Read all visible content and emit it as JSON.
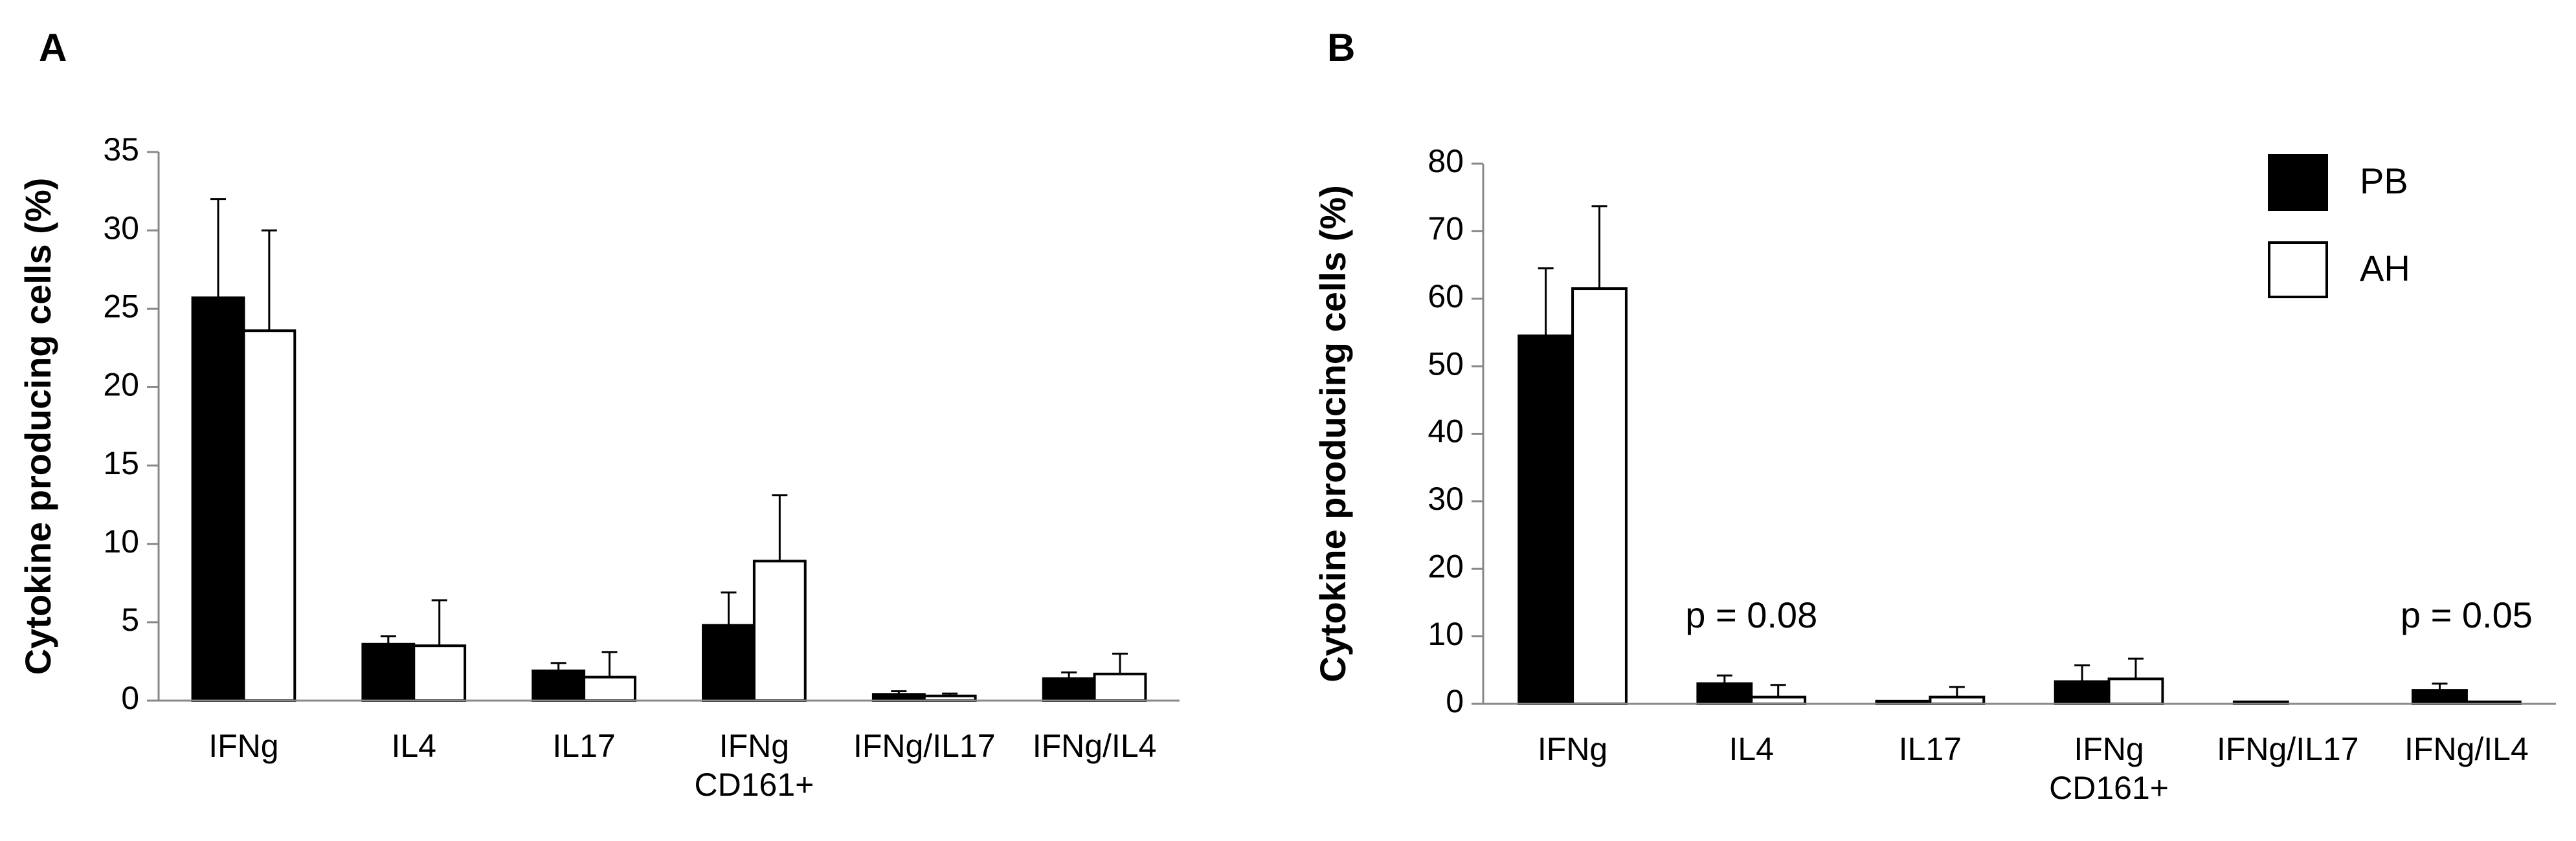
{
  "chart_data": [
    {
      "type": "bar",
      "label": "A",
      "y_label": "Cytokine producing cells (%)",
      "categories": [
        "IFNg",
        "IL4",
        "IL17",
        "IFNg CD161+",
        "IFNg/IL17",
        "IFNg/IL4"
      ],
      "series": [
        {
          "name": "PB",
          "color": "#000000",
          "values": [
            25.7,
            3.6,
            1.9,
            4.8,
            0.4,
            1.4
          ],
          "errors": [
            6.3,
            0.5,
            0.5,
            2.1,
            0.2,
            0.4
          ]
        },
        {
          "name": "AH",
          "color": "#ffffff",
          "values": [
            23.6,
            3.5,
            1.5,
            8.9,
            0.3,
            1.7
          ],
          "errors": [
            6.4,
            2.9,
            1.6,
            4.2,
            0.15,
            1.3
          ]
        }
      ],
      "ylim": [
        0,
        35
      ],
      "yticks": [
        0,
        5,
        10,
        15,
        20,
        25,
        30,
        35
      ],
      "legend": false
    },
    {
      "type": "bar",
      "label": "B",
      "y_label": "Cytokine producing cells (%)",
      "categories": [
        "IFNg",
        "IL4",
        "IL17",
        "IFNg CD161+",
        "IFNg/IL17",
        "IFNg/IL4"
      ],
      "series": [
        {
          "name": "PB",
          "color": "#000000",
          "values": [
            54.5,
            3.0,
            0.4,
            3.3,
            0.3,
            2.0
          ],
          "errors": [
            10.0,
            1.2,
            0,
            2.4,
            0,
            1.0
          ]
        },
        {
          "name": "AH",
          "color": "#ffffff",
          "values": [
            61.5,
            1.0,
            1.0,
            3.7,
            0,
            0.3
          ],
          "errors": [
            12.2,
            1.8,
            1.5,
            3.0,
            0,
            0
          ]
        }
      ],
      "ylim": [
        0,
        80
      ],
      "yticks": [
        0,
        10,
        20,
        30,
        40,
        50,
        60,
        70,
        80
      ],
      "legend": "top-right",
      "annotations": [
        {
          "text": "p = 0.08",
          "category": "IL4"
        },
        {
          "text": "p = 0.05",
          "category": "IFNg/IL4"
        }
      ]
    }
  ]
}
